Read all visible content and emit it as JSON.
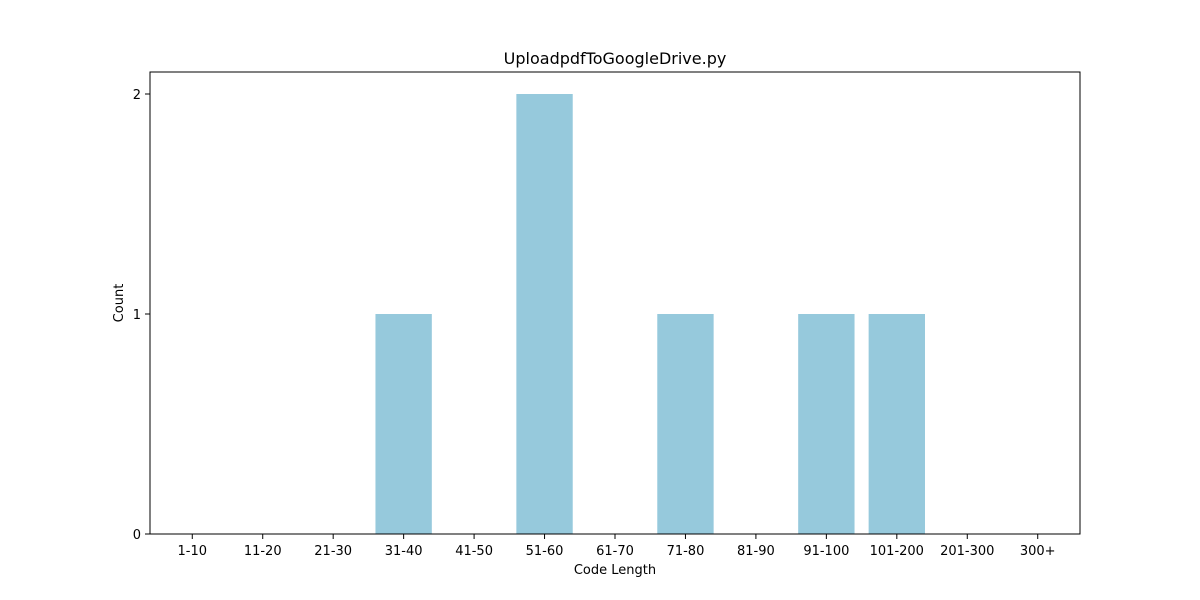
{
  "chart_data": {
    "type": "bar",
    "title": "UploadpdfToGoogleDrive.py",
    "xlabel": "Code Length",
    "ylabel": "Count",
    "categories": [
      "1-10",
      "11-20",
      "21-30",
      "31-40",
      "41-50",
      "51-60",
      "61-70",
      "71-80",
      "81-90",
      "91-100",
      "101-200",
      "201-300",
      "300+"
    ],
    "values": [
      0,
      0,
      0,
      1,
      0,
      2,
      0,
      1,
      0,
      1,
      1,
      0,
      0
    ],
    "ylim": [
      0,
      2.1
    ],
    "yticks": [
      0,
      1,
      2
    ],
    "grid": false,
    "bar_color": "#96c9dc"
  }
}
